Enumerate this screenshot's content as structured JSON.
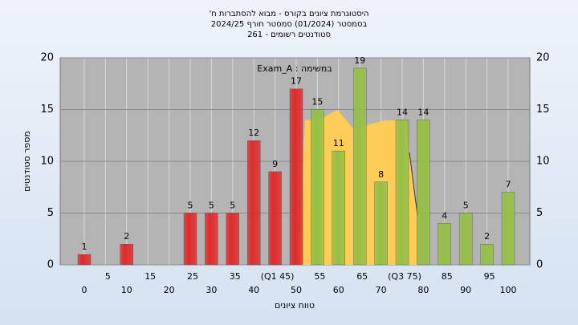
{
  "chart_data": {
    "type": "bar",
    "title": [
      "היסטוגרמת ציונים בקורס - מבוא להסתברות ח'",
      "בסמסטר  (01/2024)  סמסטר חורף 2024/25",
      "סטודנטים רשומים - 261"
    ],
    "annotation": "במשימה : Exam_A",
    "xlabel": "טווח ציונים",
    "ylabel": "מספר סטודנטים",
    "categories": [
      "0",
      "5",
      "10",
      "15",
      "20",
      "25",
      "30",
      "35",
      "40",
      "(Q1 45)",
      "50",
      "55",
      "60",
      "65",
      "70",
      "(Q3 75)",
      "80",
      "85",
      "90",
      "95",
      "100"
    ],
    "values": [
      1,
      0,
      2,
      0,
      0,
      5,
      5,
      5,
      12,
      9,
      17,
      15,
      11,
      19,
      8,
      14,
      14,
      4,
      5,
      2,
      7
    ],
    "colors": [
      "#e02a2a",
      "#e02a2a",
      "#e02a2a",
      "#e02a2a",
      "#e02a2a",
      "#e02a2a",
      "#e02a2a",
      "#e02a2a",
      "#e02a2a",
      "#e02a2a",
      "#e02a2a",
      "#94bf45",
      "#94bf45",
      "#94bf45",
      "#94bf45",
      "#94bf45",
      "#94bf45",
      "#94bf45",
      "#94bf45",
      "#94bf45",
      "#94bf45"
    ],
    "ylim": [
      0,
      20
    ],
    "yticks": [
      0,
      5,
      10,
      15,
      20
    ],
    "grid": true
  }
}
